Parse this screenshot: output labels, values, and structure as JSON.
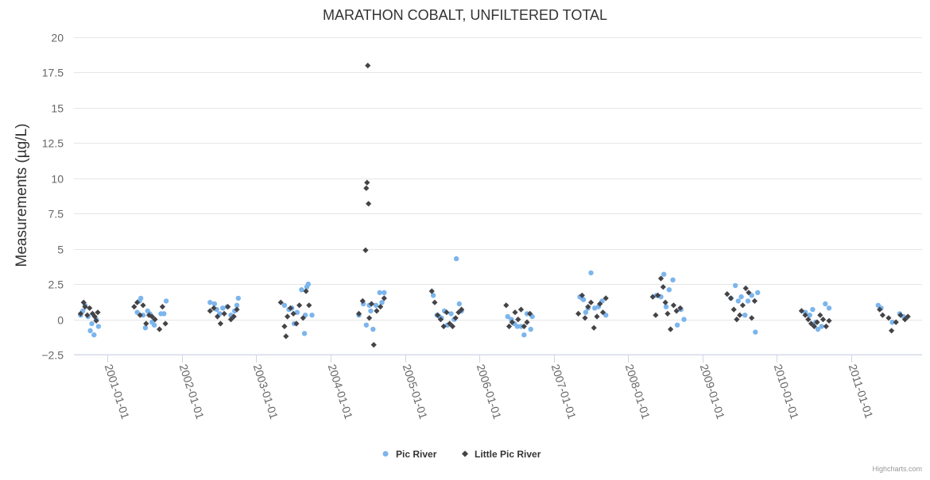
{
  "chart_data": {
    "type": "scatter",
    "title": "MARATHON COBALT, UNFILTERED TOTAL",
    "xlabel": "",
    "ylabel": "Measurements (µg/L)",
    "ylim": [
      -2.5,
      20
    ],
    "yticks": [
      -2.5,
      0,
      2.5,
      5,
      7.5,
      10,
      12.5,
      15,
      17.5,
      20
    ],
    "ytick_labels": [
      "−2.5",
      "0",
      "2.5",
      "5",
      "7.5",
      "10",
      "12.5",
      "15",
      "17.5",
      "20"
    ],
    "xlim": [
      2000.55,
      2011.95
    ],
    "xticks": [
      2001,
      2002,
      2003,
      2004,
      2005,
      2006,
      2007,
      2008,
      2009,
      2010,
      2011
    ],
    "xtick_labels": [
      "2001-01-01",
      "2002-01-01",
      "2003-01-01",
      "2004-01-01",
      "2005-01-01",
      "2006-01-01",
      "2007-01-01",
      "2008-01-01",
      "2009-01-01",
      "2010-01-01",
      "2011-01-01"
    ],
    "grid": true,
    "legend_position": "bottom-center",
    "credits": "Highcharts.com",
    "series": [
      {
        "name": "Pic River",
        "color": "#7cb5ec",
        "marker": "circle",
        "points": [
          [
            2000.64,
            0.3
          ],
          [
            2000.67,
            0.6
          ],
          [
            2000.7,
            1.0
          ],
          [
            2000.74,
            0.2
          ],
          [
            2000.77,
            -0.8
          ],
          [
            2000.79,
            -0.3
          ],
          [
            2000.82,
            -1.1
          ],
          [
            2000.85,
            0.0
          ],
          [
            2000.88,
            -0.5
          ],
          [
            2001.4,
            0.5
          ],
          [
            2001.43,
            1.3
          ],
          [
            2001.45,
            1.5
          ],
          [
            2001.48,
            0.3
          ],
          [
            2001.51,
            -0.6
          ],
          [
            2001.54,
            0.6
          ],
          [
            2001.57,
            0.4
          ],
          [
            2001.6,
            -0.2
          ],
          [
            2001.63,
            -0.4
          ],
          [
            2001.72,
            0.4
          ],
          [
            2001.76,
            0.4
          ],
          [
            2001.79,
            1.3
          ],
          [
            2002.38,
            1.2
          ],
          [
            2002.44,
            1.1
          ],
          [
            2002.47,
            0.7
          ],
          [
            2002.51,
            0.4
          ],
          [
            2002.55,
            0.8
          ],
          [
            2002.61,
            0.9
          ],
          [
            2002.66,
            0.3
          ],
          [
            2002.71,
            0.6
          ],
          [
            2002.74,
            1.0
          ],
          [
            2002.76,
            1.5
          ],
          [
            2003.38,
            1.0
          ],
          [
            2003.44,
            0.7
          ],
          [
            2003.48,
            0.8
          ],
          [
            2003.51,
            -0.3
          ],
          [
            2003.55,
            0.5
          ],
          [
            2003.61,
            2.1
          ],
          [
            2003.66,
            0.3
          ],
          [
            2003.68,
            2.3
          ],
          [
            2003.7,
            2.5
          ],
          [
            2003.75,
            0.3
          ],
          [
            2003.65,
            -1.0
          ],
          [
            2004.38,
            0.3
          ],
          [
            2004.44,
            1.1
          ],
          [
            2004.48,
            -0.4
          ],
          [
            2004.52,
            1.0
          ],
          [
            2004.54,
            0.6
          ],
          [
            2004.57,
            -0.7
          ],
          [
            2004.61,
            1.0
          ],
          [
            2004.66,
            1.9
          ],
          [
            2004.72,
            1.9
          ],
          [
            2004.69,
            1.2
          ],
          [
            2005.38,
            1.7
          ],
          [
            2005.43,
            0.3
          ],
          [
            2005.46,
            0.2
          ],
          [
            2005.49,
            0.1
          ],
          [
            2005.53,
            0.6
          ],
          [
            2005.57,
            -0.4
          ],
          [
            2005.62,
            0.4
          ],
          [
            2005.66,
            0.0
          ],
          [
            2005.69,
            4.3
          ],
          [
            2005.73,
            1.1
          ],
          [
            2005.76,
            0.6
          ],
          [
            2006.38,
            0.2
          ],
          [
            2006.43,
            0.0
          ],
          [
            2006.47,
            -0.3
          ],
          [
            2006.51,
            -0.5
          ],
          [
            2006.56,
            -0.5
          ],
          [
            2006.6,
            -1.1
          ],
          [
            2006.64,
            0.4
          ],
          [
            2006.69,
            -0.7
          ],
          [
            2006.71,
            0.2
          ],
          [
            2007.35,
            1.6
          ],
          [
            2007.38,
            1.5
          ],
          [
            2007.4,
            1.4
          ],
          [
            2007.43,
            0.5
          ],
          [
            2007.46,
            0.8
          ],
          [
            2007.5,
            3.3
          ],
          [
            2007.55,
            0.8
          ],
          [
            2007.6,
            0.9
          ],
          [
            2007.65,
            1.3
          ],
          [
            2007.7,
            0.3
          ],
          [
            2008.38,
            1.7
          ],
          [
            2008.44,
            1.6
          ],
          [
            2008.48,
            3.2
          ],
          [
            2008.51,
            0.9
          ],
          [
            2008.55,
            2.1
          ],
          [
            2008.6,
            2.8
          ],
          [
            2008.66,
            -0.4
          ],
          [
            2008.71,
            0.7
          ],
          [
            2008.75,
            0.0
          ],
          [
            2009.38,
            1.5
          ],
          [
            2009.44,
            2.4
          ],
          [
            2009.48,
            1.3
          ],
          [
            2009.52,
            1.6
          ],
          [
            2009.57,
            0.3
          ],
          [
            2009.61,
            1.3
          ],
          [
            2009.66,
            1.7
          ],
          [
            2009.71,
            -0.9
          ],
          [
            2009.74,
            1.9
          ],
          [
            2010.38,
            0.5
          ],
          [
            2010.44,
            0.3
          ],
          [
            2010.48,
            0.7
          ],
          [
            2010.52,
            -0.2
          ],
          [
            2010.55,
            -0.7
          ],
          [
            2010.6,
            -0.5
          ],
          [
            2010.65,
            1.1
          ],
          [
            2010.7,
            0.8
          ],
          [
            2011.36,
            1.0
          ],
          [
            2011.4,
            0.8
          ],
          [
            2011.55,
            -0.2
          ],
          [
            2011.65,
            0.4
          ],
          [
            2011.7,
            0.2
          ]
        ]
      },
      {
        "name": "Little Pic River",
        "color": "#434348",
        "marker": "diamond",
        "points": [
          [
            2000.64,
            0.4
          ],
          [
            2000.68,
            1.2
          ],
          [
            2000.7,
            0.9
          ],
          [
            2000.73,
            0.3
          ],
          [
            2000.76,
            0.8
          ],
          [
            2000.8,
            0.4
          ],
          [
            2000.83,
            0.2
          ],
          [
            2000.85,
            -0.1
          ],
          [
            2000.87,
            0.5
          ],
          [
            2001.36,
            0.9
          ],
          [
            2001.4,
            1.2
          ],
          [
            2001.44,
            0.3
          ],
          [
            2001.48,
            1.0
          ],
          [
            2001.52,
            -0.3
          ],
          [
            2001.56,
            0.3
          ],
          [
            2001.6,
            0.2
          ],
          [
            2001.64,
            0.0
          ],
          [
            2001.7,
            -0.7
          ],
          [
            2001.74,
            0.9
          ],
          [
            2001.78,
            -0.3
          ],
          [
            2002.38,
            0.6
          ],
          [
            2002.43,
            0.8
          ],
          [
            2002.48,
            0.2
          ],
          [
            2002.52,
            -0.3
          ],
          [
            2002.57,
            0.4
          ],
          [
            2002.62,
            0.9
          ],
          [
            2002.66,
            0.0
          ],
          [
            2002.7,
            0.2
          ],
          [
            2002.74,
            0.7
          ],
          [
            2003.33,
            1.2
          ],
          [
            2003.38,
            -0.5
          ],
          [
            2003.42,
            0.2
          ],
          [
            2003.46,
            0.8
          ],
          [
            2003.5,
            0.4
          ],
          [
            2003.54,
            -0.3
          ],
          [
            2003.58,
            1.0
          ],
          [
            2003.63,
            0.1
          ],
          [
            2003.67,
            2.0
          ],
          [
            2003.71,
            1.0
          ],
          [
            2003.4,
            -1.2
          ],
          [
            2004.38,
            0.4
          ],
          [
            2004.43,
            1.3
          ],
          [
            2004.47,
            4.9
          ],
          [
            2004.48,
            9.3
          ],
          [
            2004.49,
            9.7
          ],
          [
            2004.51,
            8.2
          ],
          [
            2004.5,
            18.0
          ],
          [
            2004.55,
            1.1
          ],
          [
            2004.58,
            -1.8
          ],
          [
            2004.62,
            0.6
          ],
          [
            2004.67,
            0.9
          ],
          [
            2004.72,
            1.5
          ],
          [
            2004.52,
            0.1
          ],
          [
            2005.36,
            2.0
          ],
          [
            2005.4,
            1.2
          ],
          [
            2005.44,
            0.3
          ],
          [
            2005.48,
            0.0
          ],
          [
            2005.52,
            -0.5
          ],
          [
            2005.56,
            0.5
          ],
          [
            2005.6,
            -0.3
          ],
          [
            2005.64,
            -0.5
          ],
          [
            2005.68,
            0.1
          ],
          [
            2005.72,
            0.5
          ],
          [
            2005.76,
            0.7
          ],
          [
            2006.36,
            1.0
          ],
          [
            2006.4,
            -0.5
          ],
          [
            2006.44,
            -0.2
          ],
          [
            2006.48,
            0.5
          ],
          [
            2006.52,
            0.0
          ],
          [
            2006.56,
            0.7
          ],
          [
            2006.6,
            -0.5
          ],
          [
            2006.64,
            -0.2
          ],
          [
            2006.68,
            0.4
          ],
          [
            2007.33,
            0.4
          ],
          [
            2007.38,
            1.7
          ],
          [
            2007.42,
            0.1
          ],
          [
            2007.46,
            0.9
          ],
          [
            2007.5,
            1.2
          ],
          [
            2007.54,
            -0.6
          ],
          [
            2007.58,
            0.2
          ],
          [
            2007.62,
            1.1
          ],
          [
            2007.66,
            0.5
          ],
          [
            2007.7,
            1.5
          ],
          [
            2008.33,
            1.6
          ],
          [
            2008.37,
            0.3
          ],
          [
            2008.4,
            1.7
          ],
          [
            2008.44,
            2.9
          ],
          [
            2008.47,
            2.3
          ],
          [
            2008.5,
            1.2
          ],
          [
            2008.53,
            0.4
          ],
          [
            2008.57,
            -0.7
          ],
          [
            2008.61,
            1.0
          ],
          [
            2008.65,
            0.6
          ],
          [
            2008.7,
            0.8
          ],
          [
            2009.33,
            1.8
          ],
          [
            2009.38,
            1.5
          ],
          [
            2009.42,
            0.7
          ],
          [
            2009.46,
            0.0
          ],
          [
            2009.5,
            0.3
          ],
          [
            2009.54,
            1.0
          ],
          [
            2009.58,
            2.2
          ],
          [
            2009.62,
            1.9
          ],
          [
            2009.66,
            0.1
          ],
          [
            2009.7,
            1.3
          ],
          [
            2010.33,
            0.6
          ],
          [
            2010.38,
            0.3
          ],
          [
            2010.42,
            0.0
          ],
          [
            2010.46,
            -0.3
          ],
          [
            2010.5,
            -0.5
          ],
          [
            2010.54,
            -0.2
          ],
          [
            2010.58,
            0.3
          ],
          [
            2010.62,
            0.0
          ],
          [
            2010.66,
            -0.5
          ],
          [
            2010.7,
            -0.1
          ],
          [
            2011.38,
            0.7
          ],
          [
            2011.42,
            0.3
          ],
          [
            2011.5,
            0.1
          ],
          [
            2011.54,
            -0.8
          ],
          [
            2011.6,
            -0.2
          ],
          [
            2011.66,
            0.3
          ],
          [
            2011.72,
            0.0
          ],
          [
            2011.76,
            0.2
          ]
        ]
      }
    ]
  }
}
